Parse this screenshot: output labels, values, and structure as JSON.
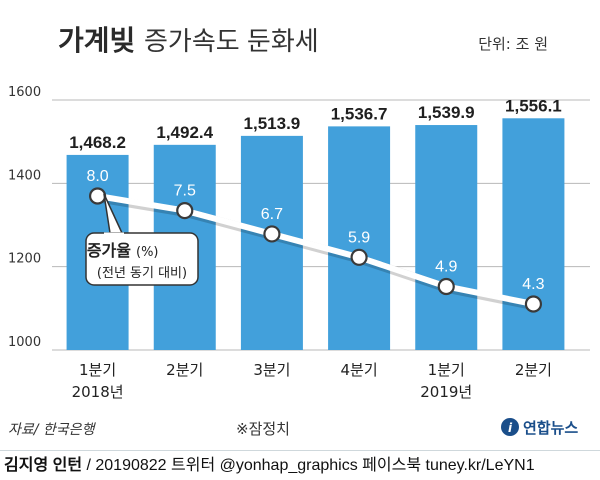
{
  "chart_data": {
    "type": "bar",
    "title_bold": "가계빚",
    "title_rest": "증가속도 둔화세",
    "unit": "단위: 조 원",
    "categories": [
      "1분기",
      "2분기",
      "3분기",
      "4분기",
      "1분기",
      "2분기"
    ],
    "year_labels": [
      "2018년",
      "",
      "",
      "",
      "2019년",
      ""
    ],
    "values": [
      1468.2,
      1492.4,
      1513.9,
      1536.7,
      1539.9,
      1556.1
    ],
    "value_labels": [
      "1,468.2",
      "1,492.4",
      "1,513.9",
      "1,536.7",
      "1,539.9",
      "1,556.1"
    ],
    "ylim": [
      1000,
      1600
    ],
    "yticks": [
      1000,
      1200,
      1400,
      1600
    ],
    "growth_series": {
      "name": "증가율",
      "unit": "(%)",
      "desc": "(전년 동기 대비)",
      "values": [
        8.0,
        7.5,
        6.7,
        5.9,
        4.9,
        4.3
      ],
      "labels": [
        "8.0",
        "7.5",
        "6.7",
        "5.9",
        "4.9",
        "4.3"
      ]
    },
    "source": "자료/ 한국은행",
    "note": "※잠정치",
    "brand": "연합뉴스",
    "colors": {
      "bar": "#42a0db",
      "bar_light": "#7fc0ea",
      "line": "#ffffff",
      "title": "#2a2a2a",
      "accent": "#1a4e8a"
    }
  },
  "footer": {
    "author": "김지영 인턴",
    "rest": " / 20190822 트위터 @yonhap_graphics  페이스북 tuney.kr/LeYN1"
  }
}
